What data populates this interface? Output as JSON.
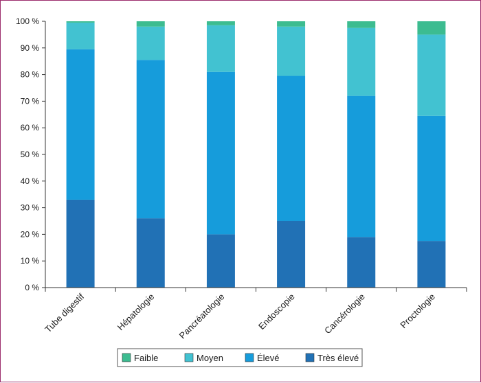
{
  "chart_data": {
    "type": "bar",
    "stacked": true,
    "categories": [
      "Tube digestif",
      "Hépatologie",
      "Pancréatologie",
      "Endoscopie",
      "Cancérologie",
      "Proctologie"
    ],
    "series": [
      {
        "name": "Très élevé",
        "color": "#2171b5",
        "values": [
          33,
          26,
          20,
          25,
          19,
          17.5
        ]
      },
      {
        "name": "Élevé",
        "color": "#169cdb",
        "values": [
          56.5,
          59.5,
          61,
          54.5,
          53,
          47
        ]
      },
      {
        "name": "Moyen",
        "color": "#42c2d1",
        "values": [
          10,
          12.5,
          17.5,
          18.5,
          25.5,
          30.5
        ]
      },
      {
        "name": "Faible",
        "color": "#3cbc90",
        "values": [
          0.5,
          2,
          1.5,
          2,
          2.5,
          5
        ]
      }
    ],
    "ylim": [
      0,
      100
    ],
    "yticks": [
      "0 %",
      "10 %",
      "20 %",
      "30 %",
      "40 %",
      "50 %",
      "60 %",
      "70 %",
      "80 %",
      "90 %",
      "100 %"
    ],
    "legend": {
      "position": "bottom",
      "order": [
        "Faible",
        "Moyen",
        "Élevé",
        "Très élevé"
      ]
    },
    "grid": false
  }
}
